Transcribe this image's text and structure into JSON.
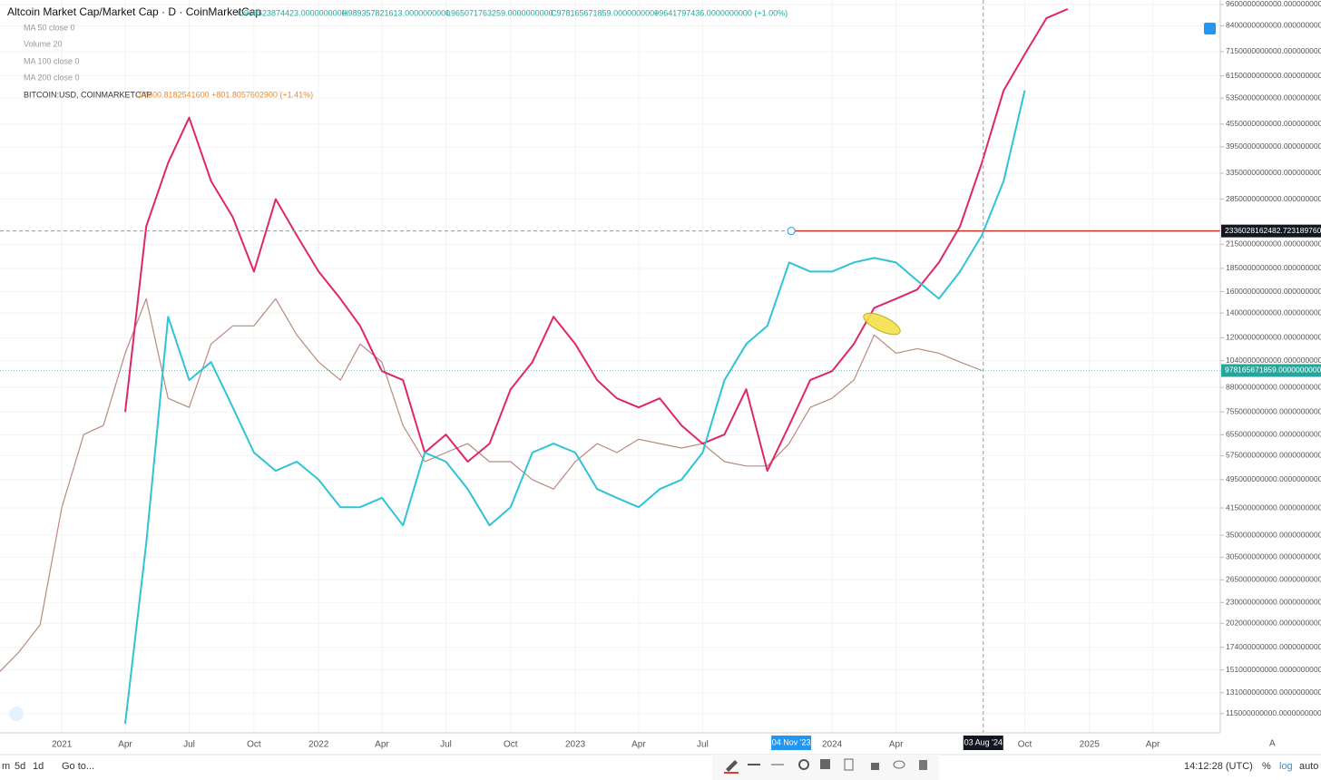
{
  "chart_data": {
    "type": "line",
    "title": "Altcoin Market Cap/Market Cap · D · CoinMarketCap",
    "ohlc_legend": [
      "O968523874423.0000000000",
      "H989357821613.0000000000",
      "L965071763259.0000000000",
      "C978165671859.0000000000",
      "+9641797436.0000000000 (+1.00%)"
    ],
    "indicators": [
      "MA 50 close 0",
      "Volume 20",
      "MA 100 close 0",
      "MA 200 close 0"
    ],
    "compare": {
      "name": "BITCOIN:USD, COINMARKETCAP",
      "value_text": "57500.8182541600 +801.8057602900 (+1.41%)",
      "color": "#ef8a2b"
    },
    "log_scale": true,
    "xlim": [
      "2020-10-05",
      "2025-07-06"
    ],
    "xticks": [
      {
        "value": "2021-01-01",
        "label": "2021"
      },
      {
        "value": "2021-04-01",
        "label": "Apr"
      },
      {
        "value": "2021-07-01",
        "label": "Jul"
      },
      {
        "value": "2021-10-01",
        "label": "Oct"
      },
      {
        "value": "2022-01-01",
        "label": "2022"
      },
      {
        "value": "2022-04-01",
        "label": "Apr"
      },
      {
        "value": "2022-07-01",
        "label": "Jul"
      },
      {
        "value": "2022-10-01",
        "label": "Oct"
      },
      {
        "value": "2023-01-01",
        "label": "2023"
      },
      {
        "value": "2023-04-01",
        "label": "Apr"
      },
      {
        "value": "2023-07-01",
        "label": "Jul"
      },
      {
        "value": "2024-01-01",
        "label": "2024"
      },
      {
        "value": "2024-04-01",
        "label": "Apr"
      },
      {
        "value": "2024-10-01",
        "label": "Oct"
      },
      {
        "value": "2025-01-01",
        "label": "2025"
      },
      {
        "value": "2025-04-01",
        "label": "Apr"
      }
    ],
    "ylim": [
      102000000000,
      9870000000000
    ],
    "yticks": [
      {
        "value": 9600000000000,
        "label": "9600000000000.0000000000"
      },
      {
        "value": 8400000000000,
        "label": "8400000000000.0000000000"
      },
      {
        "value": 7150000000000,
        "label": "7150000000000.0000000000"
      },
      {
        "value": 6150000000000,
        "label": "6150000000000.0000000000"
      },
      {
        "value": 5350000000000,
        "label": "5350000000000.0000000000"
      },
      {
        "value": 4550000000000,
        "label": "4550000000000.0000000000"
      },
      {
        "value": 3950000000000,
        "label": "3950000000000.0000000000"
      },
      {
        "value": 3350000000000,
        "label": "3350000000000.0000000000"
      },
      {
        "value": 2850000000000,
        "label": "2850000000000.0000000000"
      },
      {
        "value": 2150000000000,
        "label": "2150000000000.0000000000"
      },
      {
        "value": 1850000000000,
        "label": "1850000000000.0000000000"
      },
      {
        "value": 1600000000000,
        "label": "1600000000000.0000000000"
      },
      {
        "value": 1400000000000,
        "label": "1400000000000.0000000000"
      },
      {
        "value": 1200000000000,
        "label": "1200000000000.0000000000"
      },
      {
        "value": 1040000000000,
        "label": "1040000000000.0000000000"
      },
      {
        "value": 880000000000,
        "label": "880000000000.0000000000"
      },
      {
        "value": 755000000000,
        "label": "755000000000.0000000000"
      },
      {
        "value": 655000000000,
        "label": "655000000000.0000000000"
      },
      {
        "value": 575000000000,
        "label": "575000000000.0000000000"
      },
      {
        "value": 495000000000,
        "label": "495000000000.0000000000"
      },
      {
        "value": 415000000000,
        "label": "415000000000.0000000000"
      },
      {
        "value": 350000000000,
        "label": "350000000000.0000000000"
      },
      {
        "value": 305000000000,
        "label": "305000000000.0000000000"
      },
      {
        "value": 265000000000,
        "label": "265000000000.0000000000"
      },
      {
        "value": 230000000000,
        "label": "230000000000.0000000000"
      },
      {
        "value": 202000000000,
        "label": "202000000000.0000000000"
      },
      {
        "value": 174000000000,
        "label": "174000000000.0000000000"
      },
      {
        "value": 151000000000,
        "label": "151000000000.0000000000"
      },
      {
        "value": 131000000000,
        "label": "131000000000.0000000000"
      },
      {
        "value": 115000000000,
        "label": "115000000000.0000000000"
      }
    ],
    "x": [
      "2020-10",
      "2020-11",
      "2020-12",
      "2021-01",
      "2021-02",
      "2021-03",
      "2021-04",
      "2021-05",
      "2021-06",
      "2021-07",
      "2021-08",
      "2021-09",
      "2021-10",
      "2021-11",
      "2021-12",
      "2022-01",
      "2022-02",
      "2022-03",
      "2022-04",
      "2022-05",
      "2022-06",
      "2022-07",
      "2022-08",
      "2022-09",
      "2022-10",
      "2022-11",
      "2022-12",
      "2023-01",
      "2023-02",
      "2023-03",
      "2023-04",
      "2023-05",
      "2023-06",
      "2023-07",
      "2023-08",
      "2023-09",
      "2023-10",
      "2023-11",
      "2023-12",
      "2024-01",
      "2024-02",
      "2024-03",
      "2024-04",
      "2024-05",
      "2024-06",
      "2024-07",
      "2024-08",
      "2024-09",
      "2024-10",
      "2024-11",
      "2024-12"
    ],
    "series": [
      {
        "color": "#b98a7c",
        "values": [
          147000000000,
          169000000000,
          200000000000,
          417000000000,
          656000000000,
          694000000000,
          1090000000000,
          1530000000000,
          822000000000,
          777000000000,
          1154000000000,
          1292000000000,
          1292000000000,
          1530000000000,
          1221000000000,
          1031000000000,
          921000000000,
          1154000000000,
          1031000000000,
          694000000000,
          554000000000,
          586000000000,
          620000000000,
          554000000000,
          554000000000,
          495000000000,
          467000000000,
          554000000000,
          620000000000,
          586000000000,
          637000000000,
          620000000000,
          603000000000,
          620000000000,
          554000000000,
          539000000000,
          539000000000,
          620000000000,
          777000000000,
          822000000000,
          921000000000,
          1221000000000,
          1090000000000,
          1121000000000,
          1090000000000,
          1031000000000,
          978165671859,
          null,
          null,
          null,
          null
        ]
      },
      {
        "color": "#e0266a",
        "values": [
          null,
          null,
          null,
          null,
          null,
          null,
          755000000000,
          2405000000000,
          3572000000000,
          4738000000000,
          3190000000000,
          2545000000000,
          1813000000000,
          2849000000000,
          2273000000000,
          1813000000000,
          1530000000000,
          1292000000000,
          974000000000,
          921000000000,
          586000000000,
          656000000000,
          554000000000,
          620000000000,
          870000000000,
          1031000000000,
          1368000000000,
          1154000000000,
          921000000000,
          822000000000,
          777000000000,
          822000000000,
          694000000000,
          620000000000,
          656000000000,
          870000000000,
          523000000000,
          694000000000,
          921000000000,
          974000000000,
          1154000000000,
          1446000000000,
          1530000000000,
          1620000000000,
          1919000000000,
          2405000000000,
          3572000000000,
          5613000000000,
          7035000000000,
          8820000000000,
          9333000000000
        ]
      },
      {
        "color": "#2ec4d6",
        "values": [
          null,
          null,
          null,
          null,
          null,
          null,
          108000000000,
          333000000000,
          1368000000000,
          921000000000,
          1031000000000,
          777000000000,
          586000000000,
          523000000000,
          554000000000,
          495000000000,
          417000000000,
          417000000000,
          442000000000,
          372000000000,
          586000000000,
          554000000000,
          467000000000,
          372000000000,
          417000000000,
          586000000000,
          620000000000,
          586000000000,
          467000000000,
          442000000000,
          417000000000,
          467000000000,
          495000000000,
          586000000000,
          921000000000,
          1154000000000,
          1292000000000,
          1919000000000,
          1813000000000,
          1813000000000,
          1919000000000,
          1974000000000,
          1919000000000,
          1714000000000,
          1530000000000,
          1813000000000,
          2273000000000,
          3190000000000,
          5613000000000,
          null,
          null
        ]
      }
    ],
    "hline": {
      "value": 2336028162482.723,
      "label": "2336028162482.7231897600",
      "color": "#c0392b"
    },
    "last_price": {
      "value": 978165671859,
      "label": "978165671859.0000000000",
      "color": "#26a69a"
    },
    "x_labels": [
      {
        "value": "2023-11-04",
        "label": "04 Nov '23"
      },
      {
        "value": "2024-08-03",
        "label": "03 Aug '24"
      }
    ]
  },
  "toolbar": {
    "ranges": [
      "m",
      "5d",
      "1d"
    ],
    "goto": "Go to...",
    "time": "14:12:28 (UTC)",
    "scale_buttons": [
      "%",
      "log",
      "auto"
    ],
    "axis_button": "A"
  }
}
